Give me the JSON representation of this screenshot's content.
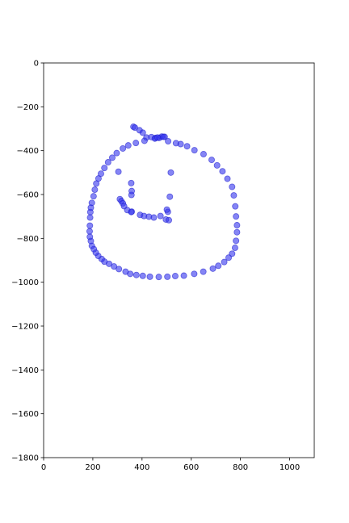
{
  "chart_data": {
    "type": "scatter",
    "title": "",
    "xlabel": "",
    "ylabel": "",
    "xlim": [
      0,
      1100
    ],
    "ylim": [
      -1800,
      0
    ],
    "x_ticks": [
      0,
      200,
      400,
      600,
      800,
      1000
    ],
    "y_ticks": [
      0,
      -200,
      -400,
      -600,
      -800,
      -1000,
      -1200,
      -1400,
      -1600,
      -1800
    ],
    "x_tick_labels": [
      "0",
      "200",
      "400",
      "600",
      "800",
      "1000"
    ],
    "y_tick_labels": [
      "0",
      "−200",
      "−400",
      "−600",
      "−800",
      "−1000",
      "−1200",
      "−1400",
      "−1600",
      "−1800"
    ],
    "grid": false,
    "legend": "none",
    "marker_color": "#3333ee",
    "series": [
      {
        "x": [
          365,
          371,
          390,
          403,
          418,
          438,
          455,
          470,
          480,
          492,
          538,
          557,
          583,
          613,
          650,
          683,
          705,
          727,
          747,
          766,
          773,
          779,
          782,
          786,
          786,
          782,
          778,
          766,
          752,
          734,
          710,
          688,
          649,
          612,
          570,
          535,
          503,
          468,
          432,
          403,
          377,
          352,
          333,
          306,
          286,
          266,
          247,
          236,
          222,
          212,
          204,
          196,
          192,
          188,
          187,
          188,
          189,
          190,
          192,
          196,
          203,
          208,
          214,
          223,
          233,
          247,
          262,
          279,
          297,
          322,
          344,
          375,
          410,
          452,
          463,
          487,
          506,
          505,
          497,
          509,
          517,
          358,
          357,
          358,
          356,
          304,
          310,
          316,
          322,
          327,
          340,
          356,
          392,
          408,
          428,
          448,
          475,
          501,
          513
        ],
        "y": [
          -291,
          -295,
          -307,
          -318,
          -340,
          -338,
          -342,
          -342,
          -336,
          -337,
          -366,
          -370,
          -380,
          -398,
          -416,
          -442,
          -467,
          -494,
          -528,
          -565,
          -604,
          -654,
          -700,
          -740,
          -772,
          -811,
          -843,
          -870,
          -888,
          -908,
          -925,
          -938,
          -952,
          -962,
          -970,
          -972,
          -975,
          -976,
          -975,
          -971,
          -967,
          -962,
          -952,
          -940,
          -928,
          -916,
          -906,
          -894,
          -880,
          -865,
          -849,
          -834,
          -812,
          -793,
          -768,
          -742,
          -705,
          -680,
          -660,
          -638,
          -608,
          -578,
          -550,
          -527,
          -505,
          -479,
          -453,
          -432,
          -411,
          -390,
          -376,
          -365,
          -355,
          -345,
          -340,
          -337,
          -357,
          -679,
          -714,
          -717,
          -500,
          -678,
          -602,
          -584,
          -548,
          -496,
          -621,
          -630,
          -640,
          -653,
          -671,
          -680,
          -693,
          -698,
          -701,
          -705,
          -698,
          -669,
          -610
        ]
      }
    ]
  }
}
